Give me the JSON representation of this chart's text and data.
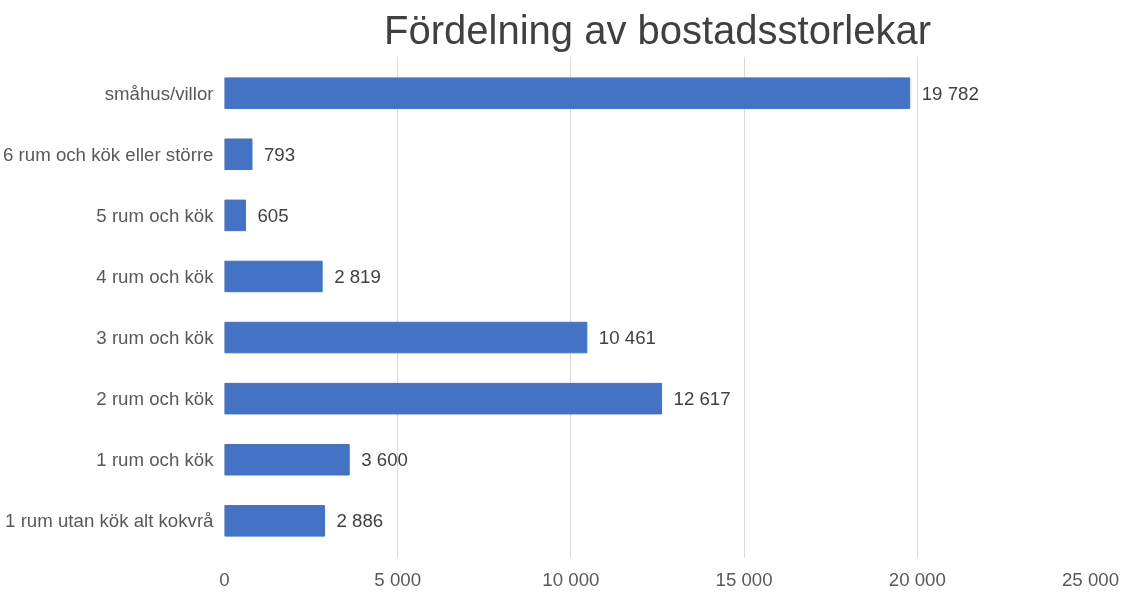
{
  "chart_data": {
    "type": "bar",
    "orientation": "horizontal",
    "title": "Fördelning av bostadsstorlekar",
    "categories": [
      "småhus/villor",
      "6 rum och kök eller större",
      "5 rum och kök",
      "4 rum och kök",
      "3 rum och kök",
      "2 rum och kök",
      "1 rum och kök",
      "1 rum utan kök alt kokvrå"
    ],
    "values": [
      19782,
      793,
      605,
      2819,
      10461,
      12617,
      3600,
      2886
    ],
    "value_labels": [
      "19 782",
      "793",
      "605",
      "2 819",
      "10 461",
      "12 617",
      "3 600",
      "2 886"
    ],
    "color": "#4472c4",
    "xlim": [
      0,
      25000
    ],
    "xticks": [
      0,
      {
        "value": 5000,
        "label": "5 000"
      },
      {
        "value": 10000,
        "label": "10 000"
      },
      {
        "value": 15000,
        "label": "15 000"
      },
      {
        "value": 20000,
        "label": "20 000"
      },
      {
        "value": 25000,
        "label": "25 000"
      }
    ],
    "grid": "x"
  }
}
